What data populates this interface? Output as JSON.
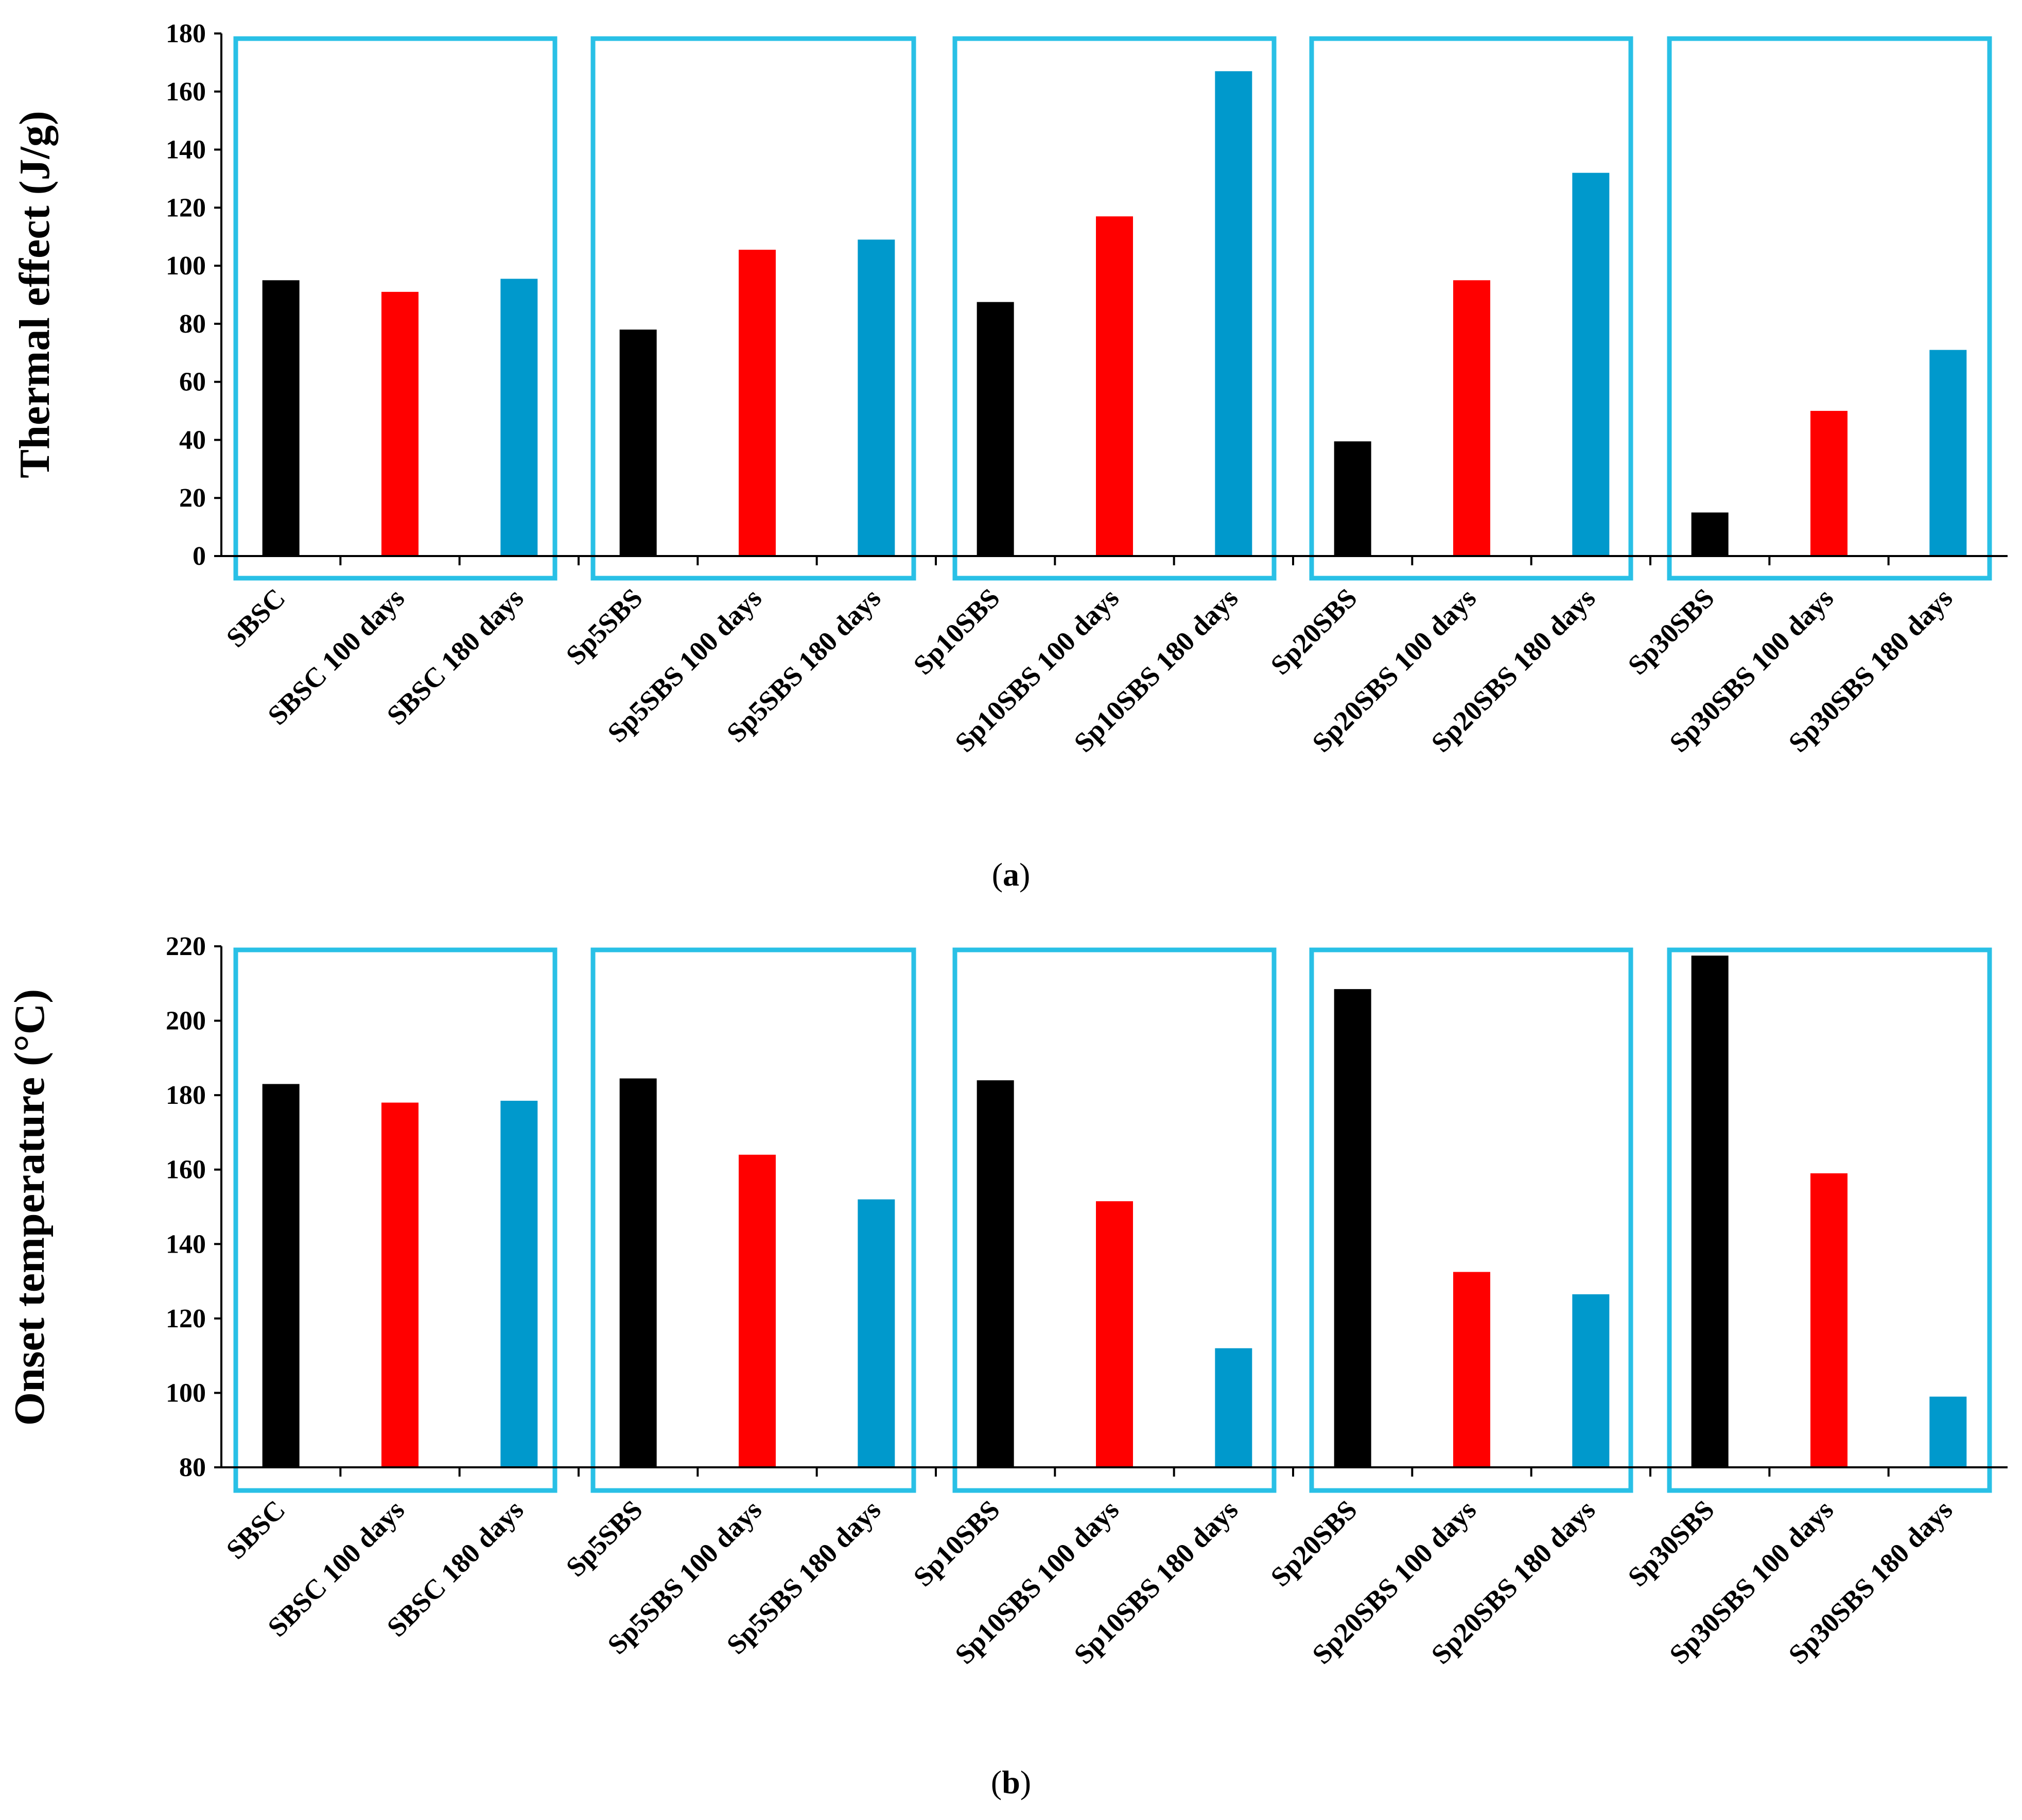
{
  "colors": {
    "box": "#29C0E6",
    "series": [
      "#000000",
      "#FF0000",
      "#0099CC"
    ]
  },
  "chart_data": [
    {
      "type": "bar",
      "panel_label": "a",
      "ylabel": "Thermal effect (J/g)",
      "ylim": [
        0,
        180
      ],
      "yticks": [
        0,
        20,
        40,
        60,
        80,
        100,
        120,
        140,
        160,
        180
      ],
      "grid": false,
      "categories": [
        "SBSC",
        "SBSC 100 days",
        "SBSC 180 days",
        "Sp5SBS",
        "Sp5SBS 100 days",
        "Sp5SBS 180 days",
        "Sp10SBS",
        "Sp10SBS 100 days",
        "Sp10SBS 180 days",
        "Sp20SBS",
        "Sp20SBS 100 days",
        "Sp20SBS 180 days",
        "Sp30SBS",
        "Sp30SBS 100 days",
        "Sp30SBS 180 days"
      ],
      "values": [
        95,
        91,
        95.5,
        78,
        105.5,
        109,
        87.5,
        117,
        167,
        39.5,
        95,
        132,
        15,
        50,
        71
      ],
      "groups": 5,
      "group_size": 3
    },
    {
      "type": "bar",
      "panel_label": "b",
      "ylabel": "Onset temperature (°C)",
      "ylim": [
        80,
        220
      ],
      "yticks": [
        80,
        100,
        120,
        140,
        160,
        180,
        200,
        220
      ],
      "grid": false,
      "categories": [
        "SBSC",
        "SBSC 100 days",
        "SBSC 180 days",
        "Sp5SBS",
        "Sp5SBS 100 days",
        "Sp5SBS 180 days",
        "Sp10SBS",
        "Sp10SBS 100 days",
        "Sp10SBS 180 days",
        "Sp20SBS",
        "Sp20SBS 100 days",
        "Sp20SBS 180 days",
        "Sp30SBS",
        "Sp30SBS 100 days",
        "Sp30SBS 180 days"
      ],
      "values": [
        183,
        178,
        178.5,
        184.5,
        164,
        152,
        184,
        151.5,
        112,
        208.5,
        132.5,
        126.5,
        217.5,
        159,
        99
      ],
      "groups": 5,
      "group_size": 3
    }
  ]
}
